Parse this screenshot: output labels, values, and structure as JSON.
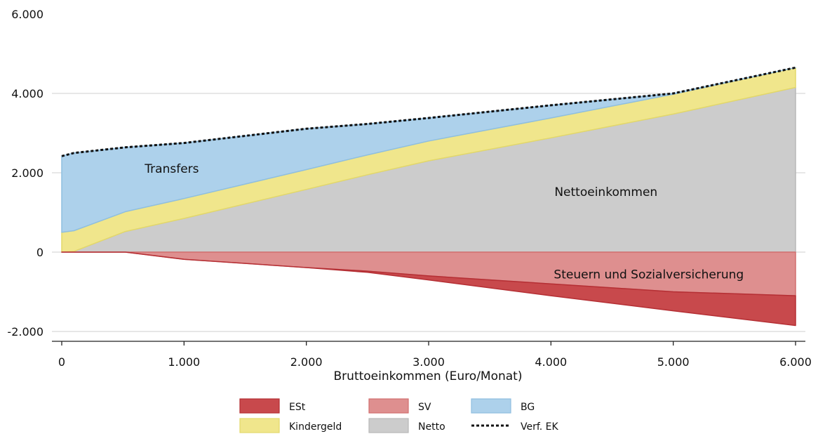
{
  "chart_data": {
    "type": "area",
    "xlabel": "Bruttoeinkommen (Euro/Monat)",
    "ylabel": "",
    "xlim": [
      0,
      6000
    ],
    "ylim": [
      -2000,
      6000
    ],
    "x_ticks": [
      0,
      1000,
      2000,
      3000,
      4000,
      5000,
      6000
    ],
    "y_ticks": [
      -2000,
      0,
      2000,
      4000,
      6000
    ],
    "x_tick_labels": [
      "0",
      "1.000",
      "2.000",
      "3.000",
      "4.000",
      "5.000",
      "6.000"
    ],
    "y_tick_labels": [
      "-2.000",
      "0",
      "2.000",
      "4.000",
      "6.000"
    ],
    "grid": "horizontal",
    "legend_position": "bottom",
    "x": [
      0,
      100,
      520,
      1000,
      2000,
      2500,
      3000,
      4000,
      5000,
      6000
    ],
    "series": [
      {
        "key": "netto",
        "name": "Netto",
        "color": "#cccccc",
        "stroke": "#b8b8b8",
        "type": "area",
        "values": [
          0,
          20,
          520,
          850,
          1580,
          1950,
          2300,
          2880,
          3480,
          4150
        ]
      },
      {
        "key": "kindergeld",
        "name": "Kindergeld",
        "color": "#f0e68c",
        "stroke": "#e3d86a",
        "type": "area",
        "values": [
          500,
          520,
          500,
          500,
          500,
          500,
          500,
          500,
          500,
          500
        ]
      },
      {
        "key": "bg",
        "name": "BG",
        "color": "#add1eb",
        "stroke": "#8fbfe0",
        "type": "area",
        "values": [
          1920,
          1960,
          1620,
          1400,
          1030,
          780,
          580,
          320,
          20,
          0
        ]
      },
      {
        "key": "sv",
        "name": "SV",
        "color": "#de8f8f",
        "stroke": "#d26f6f",
        "type": "area",
        "values": [
          0,
          0,
          0,
          -180,
          -390,
          -480,
          -600,
          -800,
          -1000,
          -1100
        ]
      },
      {
        "key": "est",
        "name": "ESt",
        "color": "#c8494c",
        "stroke": "#b52f34",
        "type": "area",
        "values": [
          0,
          0,
          0,
          0,
          0,
          -30,
          -100,
          -300,
          -480,
          -750
        ]
      },
      {
        "key": "verf",
        "name": "Verf. EK",
        "color": "#111111",
        "type": "line-dashed",
        "values": [
          2420,
          2500,
          2640,
          2750,
          3110,
          3230,
          3380,
          3700,
          4000,
          4650
        ]
      }
    ],
    "annotations": [
      {
        "text": "Transfers",
        "x": 900,
        "y": 2000
      },
      {
        "text": "Nettoeinkommen",
        "x": 4450,
        "y": 1420
      },
      {
        "text": "Steuern und Sozialversicherung",
        "x": 4800,
        "y": -660
      }
    ],
    "legend": [
      {
        "label": "ESt",
        "key": "est"
      },
      {
        "label": "SV",
        "key": "sv"
      },
      {
        "label": "BG",
        "key": "bg"
      },
      {
        "label": "Kindergeld",
        "key": "kindergeld"
      },
      {
        "label": "Netto",
        "key": "netto"
      },
      {
        "label": "Verf. EK",
        "key": "verf"
      }
    ]
  }
}
